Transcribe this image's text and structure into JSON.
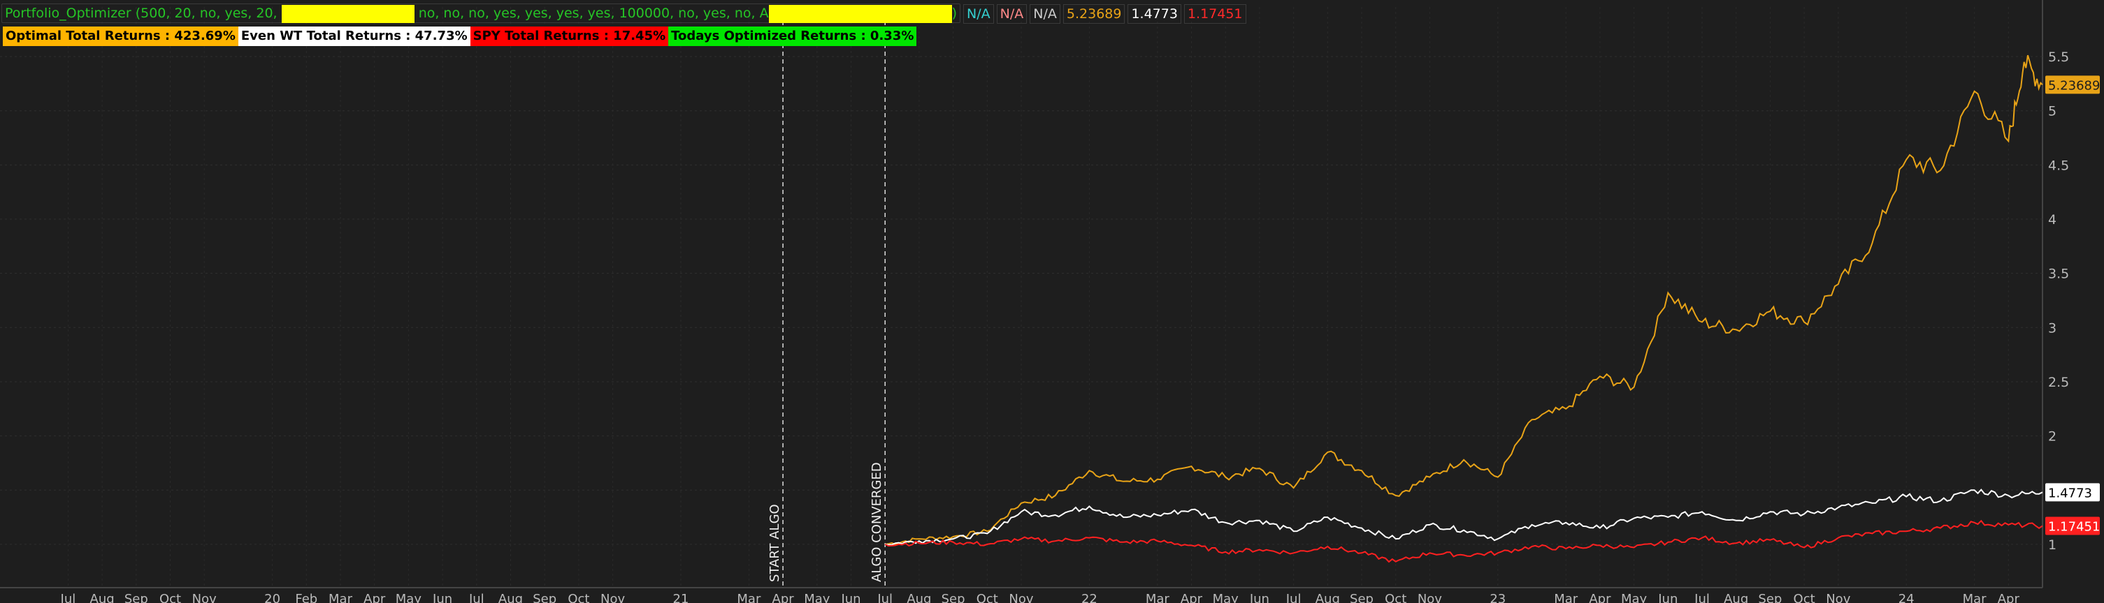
{
  "header": {
    "study_prefix": "Portfolio_Optimizer (500, 20, no, yes, 20,",
    "study_middle": "no, no, no, yes, yes, yes, yes, 100000, no, yes, no, A",
    "study_suffix": ")",
    "values": [
      {
        "text": "N/A",
        "color": "#35d0d0"
      },
      {
        "text": "N/A",
        "color": "#ff8888"
      },
      {
        "text": "N/A",
        "color": "#cccccc"
      },
      {
        "text": "5.23689",
        "color": "#e8a317"
      },
      {
        "text": "1.4773",
        "color": "#ffffff"
      },
      {
        "text": "1.17451",
        "color": "#ff2a2a"
      }
    ]
  },
  "labels": [
    {
      "text": "Optimal Total Returns : 423.69%",
      "bg": "#ffb400",
      "fg": "#000000"
    },
    {
      "text": "Even WT Total Returns : 47.73%",
      "bg": "#ffffff",
      "fg": "#000000"
    },
    {
      "text": "SPY Total Returns : 17.45%",
      "bg": "#ff0000",
      "fg": "#000000"
    },
    {
      "text": "Todays Optimized Returns : 0.33%",
      "bg": "#00e600",
      "fg": "#000000"
    }
  ],
  "chart_data": {
    "type": "line",
    "x_range": [
      "2019-05",
      "2024-05"
    ],
    "ylim": [
      0.6,
      5.7
    ],
    "y_ticks": [
      1,
      1.5,
      2,
      2.5,
      3,
      3.5,
      4,
      4.5,
      5,
      5.5
    ],
    "y_tick_labels": [
      "1",
      "1.5",
      "2",
      "2.5",
      "3",
      "3.5",
      "4",
      "4.5",
      "5",
      "5.5"
    ],
    "x_ticks": [
      {
        "t": "2019-07",
        "label": "Jul"
      },
      {
        "t": "2019-08",
        "label": "Aug"
      },
      {
        "t": "2019-09",
        "label": "Sep"
      },
      {
        "t": "2019-10",
        "label": "Oct"
      },
      {
        "t": "2019-11",
        "label": "Nov"
      },
      {
        "t": "2020-01",
        "label": "20"
      },
      {
        "t": "2020-02",
        "label": "Feb"
      },
      {
        "t": "2020-03",
        "label": "Mar"
      },
      {
        "t": "2020-04",
        "label": "Apr"
      },
      {
        "t": "2020-05",
        "label": "May"
      },
      {
        "t": "2020-06",
        "label": "Jun"
      },
      {
        "t": "2020-07",
        "label": "Jul"
      },
      {
        "t": "2020-08",
        "label": "Aug"
      },
      {
        "t": "2020-09",
        "label": "Sep"
      },
      {
        "t": "2020-10",
        "label": "Oct"
      },
      {
        "t": "2020-11",
        "label": "Nov"
      },
      {
        "t": "2021-01",
        "label": "21"
      },
      {
        "t": "2021-03",
        "label": "Mar"
      },
      {
        "t": "2021-04",
        "label": "Apr"
      },
      {
        "t": "2021-05",
        "label": "May"
      },
      {
        "t": "2021-06",
        "label": "Jun"
      },
      {
        "t": "2021-07",
        "label": "Jul"
      },
      {
        "t": "2021-08",
        "label": "Aug"
      },
      {
        "t": "2021-09",
        "label": "Sep"
      },
      {
        "t": "2021-10",
        "label": "Oct"
      },
      {
        "t": "2021-11",
        "label": "Nov"
      },
      {
        "t": "2022-01",
        "label": "22"
      },
      {
        "t": "2022-03",
        "label": "Mar"
      },
      {
        "t": "2022-04",
        "label": "Apr"
      },
      {
        "t": "2022-05",
        "label": "May"
      },
      {
        "t": "2022-06",
        "label": "Jun"
      },
      {
        "t": "2022-07",
        "label": "Jul"
      },
      {
        "t": "2022-08",
        "label": "Aug"
      },
      {
        "t": "2022-09",
        "label": "Sep"
      },
      {
        "t": "2022-10",
        "label": "Oct"
      },
      {
        "t": "2022-11",
        "label": "Nov"
      },
      {
        "t": "2023-01",
        "label": "23"
      },
      {
        "t": "2023-03",
        "label": "Mar"
      },
      {
        "t": "2023-04",
        "label": "Apr"
      },
      {
        "t": "2023-05",
        "label": "May"
      },
      {
        "t": "2023-06",
        "label": "Jun"
      },
      {
        "t": "2023-07",
        "label": "Jul"
      },
      {
        "t": "2023-08",
        "label": "Aug"
      },
      {
        "t": "2023-09",
        "label": "Sep"
      },
      {
        "t": "2023-10",
        "label": "Oct"
      },
      {
        "t": "2023-11",
        "label": "Nov"
      },
      {
        "t": "2024-01",
        "label": "24"
      },
      {
        "t": "2024-03",
        "label": "Mar"
      },
      {
        "t": "2024-04",
        "label": "Apr"
      }
    ],
    "annotations": [
      {
        "t": "2021-04",
        "label": "START ALGO"
      },
      {
        "t": "2021-07",
        "label": "ALGO CONVERGED"
      }
    ],
    "series": [
      {
        "name": "",
        "color": "#e8a317",
        "last_label": "5.23689",
        "points": [
          [
            "2021-07",
            1.0
          ],
          [
            "2021-08",
            1.05
          ],
          [
            "2021-09",
            1.07
          ],
          [
            "2021-10",
            1.12
          ],
          [
            "2021-11",
            1.38
          ],
          [
            "2021-12",
            1.45
          ],
          [
            "2022-01",
            1.68
          ],
          [
            "2022-02",
            1.58
          ],
          [
            "2022-03",
            1.6
          ],
          [
            "2022-04",
            1.72
          ],
          [
            "2022-05",
            1.62
          ],
          [
            "2022-06",
            1.7
          ],
          [
            "2022-07",
            1.52
          ],
          [
            "2022-08",
            1.85
          ],
          [
            "2022-09",
            1.68
          ],
          [
            "2022-10",
            1.45
          ],
          [
            "2022-11",
            1.62
          ],
          [
            "2022-12",
            1.78
          ],
          [
            "2023-01",
            1.62
          ],
          [
            "2023-02",
            2.15
          ],
          [
            "2023-03",
            2.25
          ],
          [
            "2023-04",
            2.55
          ],
          [
            "2023-05",
            2.45
          ],
          [
            "2023-06",
            3.32
          ],
          [
            "2023-07",
            3.05
          ],
          [
            "2023-08",
            2.98
          ],
          [
            "2023-09",
            3.15
          ],
          [
            "2023-10",
            3.05
          ],
          [
            "2023-11",
            3.4
          ],
          [
            "2023-12",
            3.78
          ],
          [
            "2024-01",
            4.55
          ],
          [
            "2024-02",
            4.45
          ],
          [
            "2024-03",
            5.18
          ],
          [
            "2024-04",
            4.72
          ],
          [
            "2024-04-15",
            5.45
          ],
          [
            "2024-05",
            5.24
          ]
        ]
      },
      {
        "name": "",
        "color": "#ffffff",
        "last_label": "1.4773",
        "points": [
          [
            "2021-07",
            1.0
          ],
          [
            "2021-08",
            1.03
          ],
          [
            "2021-09",
            1.05
          ],
          [
            "2021-10",
            1.1
          ],
          [
            "2021-11",
            1.3
          ],
          [
            "2021-12",
            1.27
          ],
          [
            "2022-01",
            1.35
          ],
          [
            "2022-02",
            1.25
          ],
          [
            "2022-03",
            1.27
          ],
          [
            "2022-04",
            1.32
          ],
          [
            "2022-05",
            1.2
          ],
          [
            "2022-06",
            1.22
          ],
          [
            "2022-07",
            1.12
          ],
          [
            "2022-08",
            1.25
          ],
          [
            "2022-09",
            1.15
          ],
          [
            "2022-10",
            1.05
          ],
          [
            "2022-11",
            1.18
          ],
          [
            "2022-12",
            1.13
          ],
          [
            "2023-01",
            1.05
          ],
          [
            "2023-02",
            1.18
          ],
          [
            "2023-03",
            1.2
          ],
          [
            "2023-04",
            1.15
          ],
          [
            "2023-05",
            1.24
          ],
          [
            "2023-06",
            1.25
          ],
          [
            "2023-07",
            1.3
          ],
          [
            "2023-08",
            1.22
          ],
          [
            "2023-09",
            1.3
          ],
          [
            "2023-10",
            1.28
          ],
          [
            "2023-11",
            1.34
          ],
          [
            "2023-12",
            1.38
          ],
          [
            "2024-01",
            1.44
          ],
          [
            "2024-02",
            1.4
          ],
          [
            "2024-03",
            1.5
          ],
          [
            "2024-04",
            1.45
          ],
          [
            "2024-05",
            1.48
          ]
        ]
      },
      {
        "name": "",
        "color": "#ff2020",
        "last_label": "1.17451",
        "points": [
          [
            "2021-07",
            1.0
          ],
          [
            "2021-08",
            1.01
          ],
          [
            "2021-09",
            1.02
          ],
          [
            "2021-10",
            1.0
          ],
          [
            "2021-11",
            1.05
          ],
          [
            "2021-12",
            1.03
          ],
          [
            "2022-01",
            1.06
          ],
          [
            "2022-02",
            1.02
          ],
          [
            "2022-03",
            1.03
          ],
          [
            "2022-04",
            0.99
          ],
          [
            "2022-05",
            0.93
          ],
          [
            "2022-06",
            0.95
          ],
          [
            "2022-07",
            0.92
          ],
          [
            "2022-08",
            0.98
          ],
          [
            "2022-09",
            0.92
          ],
          [
            "2022-10",
            0.84
          ],
          [
            "2022-11",
            0.92
          ],
          [
            "2022-12",
            0.9
          ],
          [
            "2023-01",
            0.92
          ],
          [
            "2023-02",
            0.98
          ],
          [
            "2023-03",
            0.96
          ],
          [
            "2023-04",
            0.99
          ],
          [
            "2023-05",
            0.97
          ],
          [
            "2023-06",
            1.02
          ],
          [
            "2023-07",
            1.06
          ],
          [
            "2023-08",
            1.01
          ],
          [
            "2023-09",
            1.04
          ],
          [
            "2023-10",
            0.97
          ],
          [
            "2023-11",
            1.06
          ],
          [
            "2023-12",
            1.1
          ],
          [
            "2024-01",
            1.12
          ],
          [
            "2024-02",
            1.15
          ],
          [
            "2024-03",
            1.2
          ],
          [
            "2024-04",
            1.18
          ],
          [
            "2024-05",
            1.17
          ]
        ]
      }
    ]
  }
}
